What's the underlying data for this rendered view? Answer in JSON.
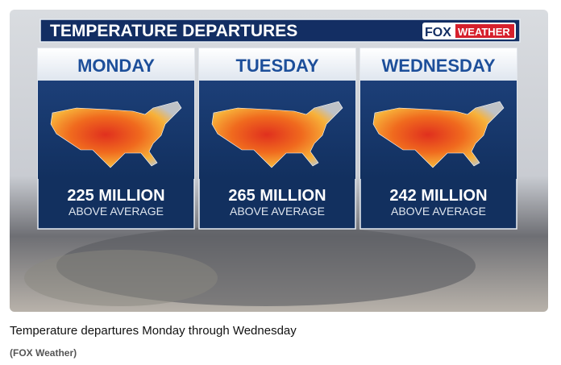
{
  "header": {
    "title": "TEMPERATURE DEPARTURES",
    "logo_left": "FOX",
    "logo_right": "WEATHER"
  },
  "panels": [
    {
      "day": "MONDAY",
      "count": "225 MILLION",
      "note": "ABOVE AVERAGE"
    },
    {
      "day": "TUESDAY",
      "count": "265 MILLION",
      "note": "ABOVE AVERAGE"
    },
    {
      "day": "WEDNESDAY",
      "count": "242 MILLION",
      "note": "ABOVE AVERAGE"
    }
  ],
  "caption": "Temperature departures Monday through Wednesday",
  "credit": "(FOX Weather)"
}
